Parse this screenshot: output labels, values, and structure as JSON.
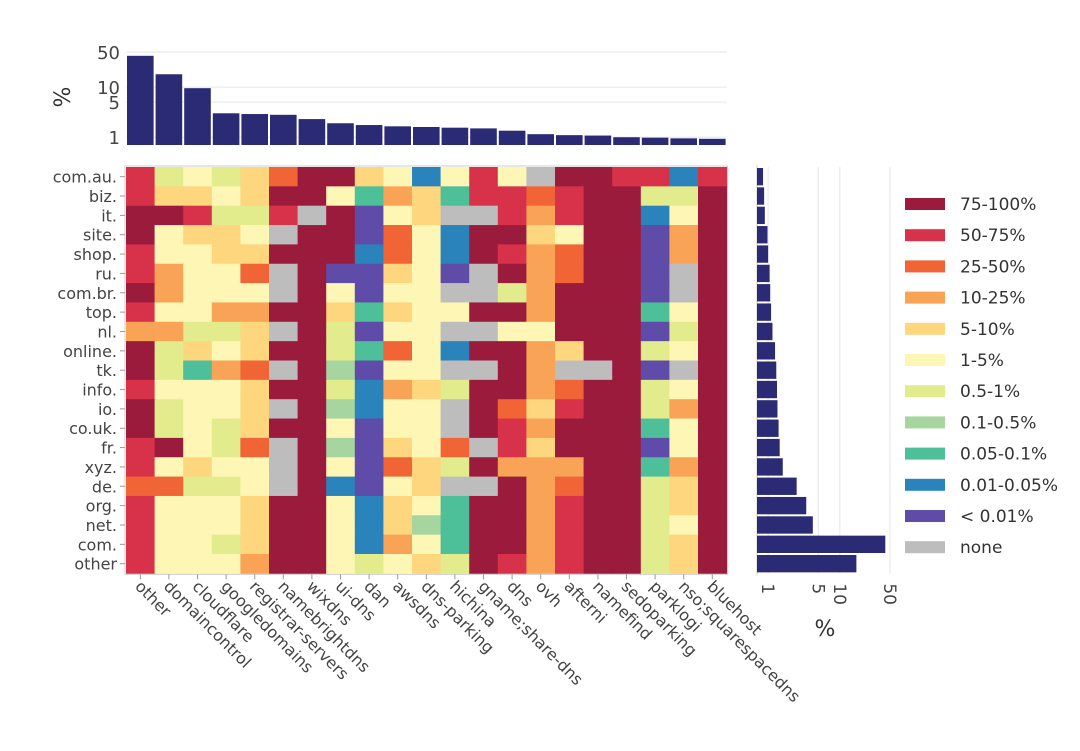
{
  "chart_data": [
    {
      "type": "bar",
      "orientation": "vertical",
      "ylabel": "%",
      "yscale": "log",
      "ylim": [
        0.7,
        50
      ],
      "yticks": [
        1,
        5,
        10,
        50
      ],
      "grid": true,
      "categories": [
        "other",
        "domaincontrol",
        "cloudflare",
        "googledomains",
        "registrar-servers",
        "namebrightdns",
        "wixdns",
        "ui-dns",
        "dan",
        "awsdns",
        "dns-parking",
        "hichina",
        "gname;share-dns",
        "dns",
        "ovh",
        "afterni",
        "namefind",
        "sedoparking",
        "parklogi",
        "nso;squarespacedns",
        "bluehost"
      ],
      "values": [
        42,
        18,
        9.5,
        3.0,
        2.9,
        2.8,
        2.3,
        1.9,
        1.75,
        1.65,
        1.6,
        1.55,
        1.5,
        1.35,
        1.15,
        1.1,
        1.08,
        1.0,
        0.98,
        0.95,
        0.93
      ]
    },
    {
      "type": "heatmap",
      "columns": [
        "other",
        "domaincontrol",
        "cloudflare",
        "googledomains",
        "registrar-servers",
        "namebrightdns",
        "wixdns",
        "ui-dns",
        "dan",
        "awsdns",
        "dns-parking",
        "hichina",
        "gname;share-dns",
        "dns",
        "ovh",
        "afterni",
        "namefind",
        "sedoparking",
        "parklogi",
        "nso;squarespacedns",
        "bluehost"
      ],
      "rows": [
        "com.au.",
        "biz.",
        "it.",
        "site.",
        "shop.",
        "ru.",
        "com.br.",
        "top.",
        "nl.",
        "online.",
        "tk.",
        "info.",
        "io.",
        "co.uk.",
        "fr.",
        "xyz.",
        "de.",
        "org.",
        "net.",
        "com.",
        "other"
      ],
      "legend_placement": "right",
      "color_scale": [
        {
          "label": "75-100%",
          "color": "#9b1b3c"
        },
        {
          "label": "50-75%",
          "color": "#d8324a"
        },
        {
          "label": "25-50%",
          "color": "#f06435"
        },
        {
          "label": "10-25%",
          "color": "#f8a356"
        },
        {
          "label": "5-10%",
          "color": "#fdd67d"
        },
        {
          "label": "1-5%",
          "color": "#fdf6b5"
        },
        {
          "label": "0.5-1%",
          "color": "#e2ec8c"
        },
        {
          "label": "0.1-0.5%",
          "color": "#a6d59f"
        },
        {
          "label": "0.05-0.1%",
          "color": "#4dbf99"
        },
        {
          "label": "0.01-0.05%",
          "color": "#2b83bb"
        },
        {
          "label": "< 0.01%",
          "color": "#5f4ca8"
        },
        {
          "label": "none",
          "color": "#bdbdbd"
        }
      ],
      "cells": [
        "BGFGECAAEFJFBFLAABBJB",
        "BEEFEAAFIDEIBBCBAAGGA",
        "AABGGBLAKFELLBDBAAJFA",
        "AFEEFLAAKCFJAAEFAAKDA",
        "BFFEEAAAJCFJABDCAAKDA",
        "BDFFCLAKKEFKLADCAAKLA",
        "ADFFFLAFKFFLLGDAAAKLA",
        "BFFDDAAEIEFFAADAAAIFA",
        "DDGGELAGKFFLLFFAAAKGA",
        "AGEFEAAGICFJAADEAAGFA",
        "AGIDCLAHKFFLLADLLAKLA",
        "BFFFEAAGJDEGAADCAAGFA",
        "AGFFELAHJFFLACEBAAGDA",
        "AGFGEAAFKFFLABDAAAIFA",
        "BAFGCLAHKEFCLBEAAAKFA",
        "BFEFFLAFKCEGADDDAAIDA",
        "CCGGFLAJKFELLADCAAGEA",
        "BFFFEAAFJEFIAADBAAGEA",
        "BFFFEAAFJEHIAADBAAGFA",
        "BFFGEAAFJDFIAADBAAGEA",
        "BFFFDAAFGFEGABDBAAGEA"
      ]
    },
    {
      "type": "bar",
      "orientation": "horizontal",
      "xlabel": "%",
      "xscale": "log",
      "xlim": [
        0.7,
        50
      ],
      "xticks": [
        1,
        5,
        10,
        50
      ],
      "grid": true,
      "categories": [
        "com.au.",
        "biz.",
        "it.",
        "site.",
        "shop.",
        "ru.",
        "com.br.",
        "top.",
        "nl.",
        "online.",
        "tk.",
        "info.",
        "io.",
        "co.uk.",
        "fr.",
        "xyz.",
        "de.",
        "org.",
        "net.",
        "com.",
        "other"
      ],
      "values": [
        0.85,
        0.88,
        0.9,
        0.98,
        1.0,
        1.05,
        1.07,
        1.1,
        1.15,
        1.25,
        1.3,
        1.33,
        1.35,
        1.4,
        1.45,
        1.6,
        2.5,
        3.4,
        4.2,
        43,
        17
      ]
    }
  ]
}
